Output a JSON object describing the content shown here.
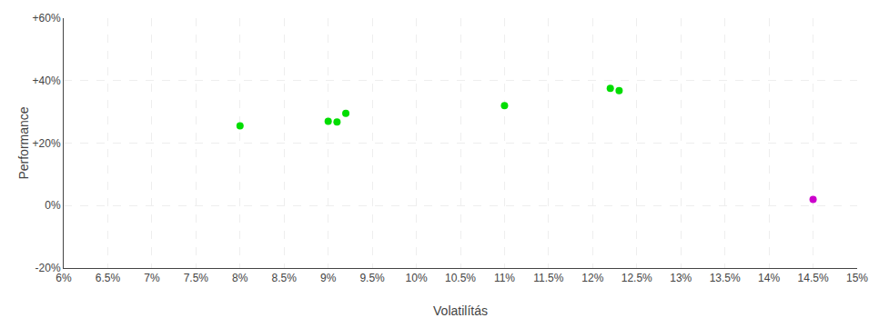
{
  "chart_data": {
    "type": "scatter",
    "x_label": "Volatilítás",
    "y_label": "Performance",
    "xlim": [
      0.06,
      0.15
    ],
    "ylim": [
      -0.2,
      0.6
    ],
    "xticks": [
      {
        "value": 0.06,
        "label": "6%"
      },
      {
        "value": 0.065,
        "label": "6.5%"
      },
      {
        "value": 0.07,
        "label": "7%"
      },
      {
        "value": 0.075,
        "label": "7.5%"
      },
      {
        "value": 0.08,
        "label": "8%"
      },
      {
        "value": 0.085,
        "label": "8.5%"
      },
      {
        "value": 0.09,
        "label": "9%"
      },
      {
        "value": 0.095,
        "label": "9.5%"
      },
      {
        "value": 0.1,
        "label": "10%"
      },
      {
        "value": 0.105,
        "label": "10.5%"
      },
      {
        "value": 0.11,
        "label": "11%"
      },
      {
        "value": 0.115,
        "label": "11.5%"
      },
      {
        "value": 0.12,
        "label": "12%"
      },
      {
        "value": 0.125,
        "label": "12.5%"
      },
      {
        "value": 0.13,
        "label": "13%"
      },
      {
        "value": 0.135,
        "label": "13.5%"
      },
      {
        "value": 0.14,
        "label": "14%"
      },
      {
        "value": 0.145,
        "label": "14.5%"
      },
      {
        "value": 0.15,
        "label": "15%"
      }
    ],
    "yticks": [
      {
        "value": -0.2,
        "label": "-20%"
      },
      {
        "value": 0.0,
        "label": "0%"
      },
      {
        "value": 0.2,
        "label": "+20%"
      },
      {
        "value": 0.4,
        "label": "+40%"
      },
      {
        "value": 0.6,
        "label": "+60%"
      }
    ],
    "grid": true,
    "marker": "circle",
    "series": [
      {
        "color": "#00dd00",
        "x": [
          0.08,
          0.09,
          0.091,
          0.092,
          0.11,
          0.122,
          0.123
        ],
        "values": [
          0.255,
          0.27,
          0.268,
          0.295,
          0.32,
          0.375,
          0.368
        ]
      },
      {
        "color": "#cc00cc",
        "x": [
          0.145
        ],
        "values": [
          0.02
        ]
      }
    ]
  }
}
